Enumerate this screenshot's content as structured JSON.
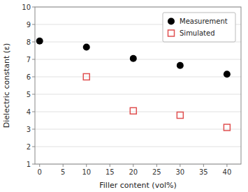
{
  "chart_data": {
    "type": "scatter",
    "xlabel": "Filler content (vol%)",
    "ylabel": "Dielectric constant (ε)",
    "xlim": [
      -1,
      43
    ],
    "ylim": [
      1,
      10
    ],
    "xticks": [
      0,
      5,
      10,
      15,
      20,
      25,
      30,
      35,
      40
    ],
    "yticks": [
      1,
      2,
      3,
      4,
      5,
      6,
      7,
      8,
      9,
      10
    ],
    "grid": "y",
    "legend": "upper right",
    "series": [
      {
        "name": "Measurement",
        "color": "#000000",
        "marker": "circle",
        "x": [
          0,
          10,
          20,
          30,
          40
        ],
        "values": [
          8.05,
          7.7,
          7.05,
          6.65,
          6.15
        ]
      },
      {
        "name": "Simulated",
        "color": "#e05050",
        "marker": "square",
        "x": [
          10,
          20,
          30,
          40
        ],
        "values": [
          6.0,
          4.05,
          3.8,
          3.1
        ]
      }
    ]
  }
}
